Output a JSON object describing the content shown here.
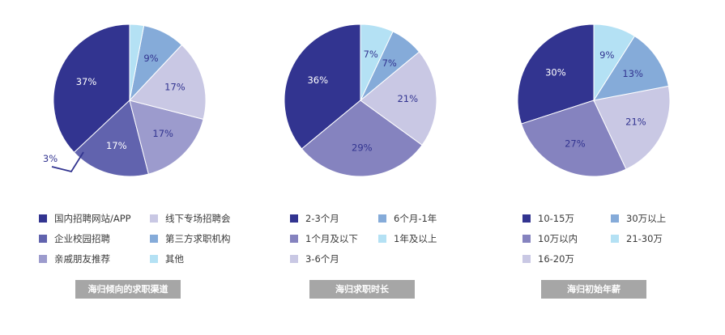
{
  "chart_data": [
    {
      "type": "pie",
      "title": "海归倾向的求职渠道",
      "slices": [
        {
          "label": "国内招聘网站/APP",
          "value": 37,
          "display": "37%",
          "color": "#323490"
        },
        {
          "label": "企业校园招聘",
          "value": 17,
          "display": "17%",
          "color": "#6163ae"
        },
        {
          "label": "亲戚朋友推荐",
          "value": 17,
          "display": "17%",
          "color": "#9c9bcd"
        },
        {
          "label": "线下专场招聘会",
          "value": 17,
          "display": "17%",
          "color": "#c9c8e4"
        },
        {
          "label": "第三方求职机构",
          "value": 9,
          "display": "9%",
          "color": "#85abd9"
        },
        {
          "label": "其他",
          "value": 3,
          "display": "3%",
          "color": "#b4e1f4"
        }
      ],
      "legend_rows": [
        [
          "国内招聘网站/APP",
          "线下专场招聘会"
        ],
        [
          "企业校园招聘",
          "第三方求职机构"
        ],
        [
          "亲戚朋友推荐",
          "其他"
        ]
      ]
    },
    {
      "type": "pie",
      "title": "海归求职时长",
      "slices": [
        {
          "label": "2-3个月",
          "value": 36,
          "display": "36%",
          "color": "#323490"
        },
        {
          "label": "1个月及以下",
          "value": 29,
          "display": "29%",
          "color": "#8583bf"
        },
        {
          "label": "3-6个月",
          "value": 21,
          "display": "21%",
          "color": "#c9c8e4"
        },
        {
          "label": "6个月-1年",
          "value": 7,
          "display": "7%",
          "color": "#85abd9"
        },
        {
          "label": "1年及以上",
          "value": 7,
          "display": "7%",
          "color": "#b4e1f4"
        }
      ],
      "legend_rows": [
        [
          "2-3个月",
          "6个月-1年"
        ],
        [
          "1个月及以下",
          "1年及以上"
        ],
        [
          "3-6个月"
        ]
      ]
    },
    {
      "type": "pie",
      "title": "海归初始年薪",
      "slices": [
        {
          "label": "10-15万",
          "value": 30,
          "display": "30%",
          "color": "#323490"
        },
        {
          "label": "10万以内",
          "value": 27,
          "display": "27%",
          "color": "#8583bf"
        },
        {
          "label": "16-20万",
          "value": 21,
          "display": "21%",
          "color": "#c9c8e4"
        },
        {
          "label": "30万以上",
          "value": 13,
          "display": "13%",
          "color": "#85abd9"
        },
        {
          "label": "21-30万",
          "value": 9,
          "display": "9%",
          "color": "#b4e1f4"
        }
      ],
      "legend_rows": [
        [
          "10-15万",
          "30万以上"
        ],
        [
          "10万以内",
          "21-30万"
        ],
        [
          "16-20万"
        ]
      ]
    }
  ]
}
